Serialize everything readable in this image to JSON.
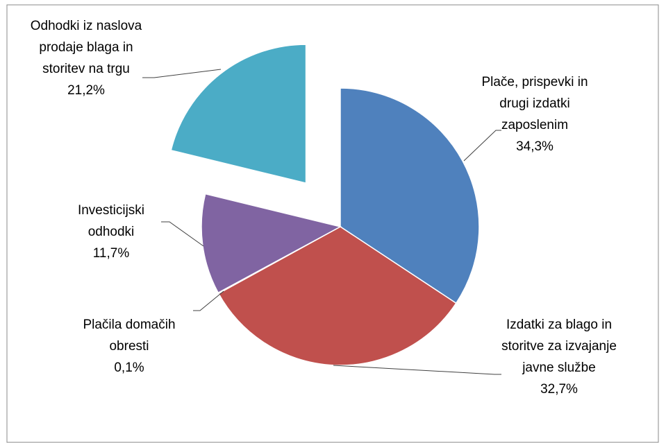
{
  "chart_data": {
    "type": "pie",
    "categories": [
      "Plače, prispevki in drugi izdatki zaposlenim",
      "Izdatki za blago in storitve za izvajanje javne službe",
      "Plačila domačih obresti",
      "Investicijski odhodki",
      "Odhodki iz naslova prodaje blaga in storitev na trgu"
    ],
    "values": [
      34.3,
      32.7,
      0.1,
      11.7,
      21.2
    ],
    "value_labels": [
      "34,3%",
      "32,7%",
      "0,1%",
      "11,7%",
      "21,2%"
    ],
    "colors": [
      "#4f81bd",
      "#c0504d",
      "#f79646",
      "#8064a2",
      "#4bacc6"
    ]
  }
}
